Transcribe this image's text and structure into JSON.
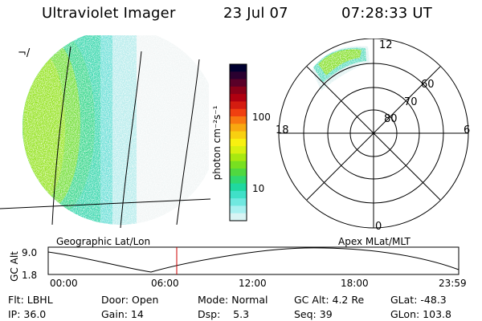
{
  "header": {
    "instrument": "Ultraviolet Imager",
    "date": "23 Jul 07",
    "time": "07:28:33 UT"
  },
  "left_panel": {
    "label": "Geographic Lat/Lon",
    "corner_glyph": "¬/"
  },
  "colorbar": {
    "label": "photon cm⁻²s⁻¹",
    "ticks": [
      "100",
      "10"
    ],
    "colors": [
      "#000030",
      "#2a0030",
      "#5a0028",
      "#8a0018",
      "#b00010",
      "#d41c10",
      "#f04010",
      "#f87810",
      "#f8a810",
      "#f8d010",
      "#f8f010",
      "#d8f010",
      "#a8e810",
      "#78e020",
      "#50d840",
      "#30d870",
      "#20d8a0",
      "#40e0c8",
      "#70e8e0",
      "#a8f0f0",
      "#d8f4f4"
    ]
  },
  "right_panel": {
    "label": "Apex MLat/MLT",
    "mlt_labels": {
      "top": "12",
      "left": "18",
      "right": "6",
      "bottom": "0"
    },
    "lat_labels": [
      "60",
      "70",
      "80"
    ]
  },
  "altitude_plot": {
    "ylabel": "GC Alt",
    "y_ticks": [
      "9.0",
      "1.8"
    ],
    "x_ticks": [
      "00:00",
      "06:00",
      "12:00",
      "18:00",
      "23:59"
    ],
    "colors": {
      "marker": "#cc0000",
      "curve": "#000000"
    }
  },
  "status": {
    "flt": "Flt: LBHL",
    "ip": "IP: 36.0",
    "door": "Door: Open",
    "gain": "Gain: 14",
    "mode": "Mode: Normal",
    "dsp": "Dsp:    5.3",
    "gc_alt": "GC Alt: 4.2 Re",
    "seq": "Seq: 39",
    "glat": "GLat: -48.3",
    "glon": "GLon: 103.8"
  }
}
